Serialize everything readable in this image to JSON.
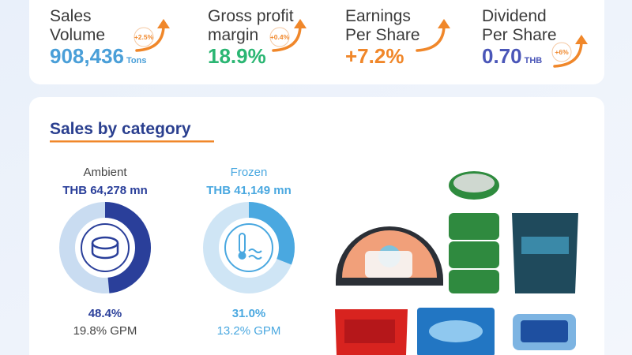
{
  "kpis": [
    {
      "label": [
        "Sales",
        "Volume"
      ],
      "value": "908,436",
      "unit": "Tons",
      "change": "+2.5%"
    },
    {
      "label": [
        "Gross profit",
        "margin"
      ],
      "value": "18.9%",
      "change": "+0.4%"
    },
    {
      "label": [
        "Earnings",
        "Per Share"
      ],
      "value": "+7.2%"
    },
    {
      "label": [
        "Dividend",
        "Per Share"
      ],
      "value": "0.70",
      "unit": "THB",
      "change": "+6%"
    }
  ],
  "sales_by_category": {
    "title": "Sales by category",
    "categories": [
      {
        "name": "Ambient",
        "sales": "THB 64,278 mn",
        "share": {
          "value": 48.4,
          "label": "48.4%"
        },
        "gpm": "19.8% GPM"
      },
      {
        "name": "Frozen",
        "sales": "THB 41,149 mn",
        "share": {
          "value": 31.0,
          "label": "31.0%"
        },
        "gpm": "13.2% GPM"
      }
    ]
  }
}
